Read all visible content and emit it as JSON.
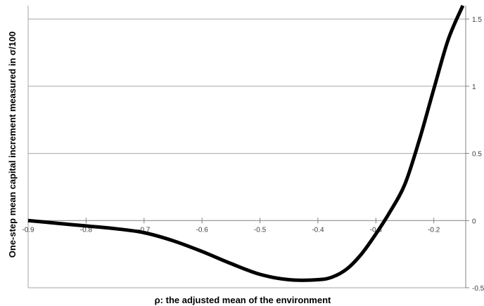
{
  "chart_data": {
    "type": "line",
    "title": "",
    "xlabel": "ρ: the adjusted mean of the environment",
    "ylabel": "One-step mean capital increment measured in σ/100",
    "xlim": [
      -0.9,
      -0.145
    ],
    "ylim": [
      -0.5,
      1.6
    ],
    "x_ticks": [
      "-0.9",
      "-0.8",
      "-0.7",
      "-0.6",
      "-0.5",
      "-0.4",
      "-0.3",
      "-0.2"
    ],
    "y_ticks": [
      "1.5",
      "1",
      "0.5",
      "0",
      "-0.5"
    ],
    "grid": true,
    "y_axis_position": "right",
    "series": [
      {
        "name": "",
        "color": "#000000",
        "x": [
          -0.9,
          -0.85,
          -0.8,
          -0.75,
          -0.7,
          -0.65,
          -0.6,
          -0.55,
          -0.5,
          -0.45,
          -0.4,
          -0.375,
          -0.35,
          -0.325,
          -0.3,
          -0.275,
          -0.25,
          -0.225,
          -0.2,
          -0.175,
          -0.15
        ],
        "y": [
          0.0,
          -0.02,
          -0.04,
          -0.06,
          -0.09,
          -0.15,
          -0.23,
          -0.32,
          -0.4,
          -0.44,
          -0.44,
          -0.42,
          -0.36,
          -0.25,
          -0.1,
          0.07,
          0.27,
          0.6,
          0.98,
          1.35,
          1.6
        ]
      }
    ]
  }
}
